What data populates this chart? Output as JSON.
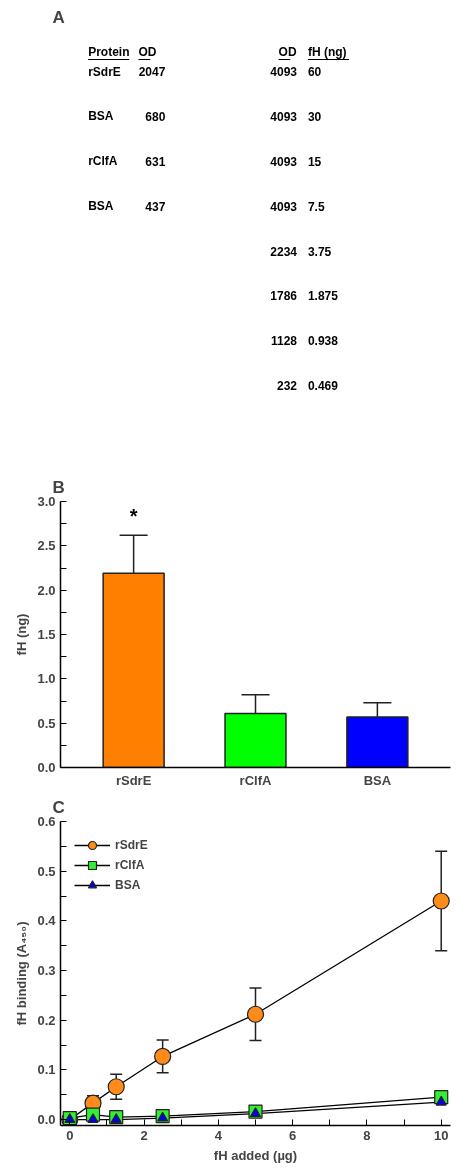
{
  "chart_data": [
    {
      "type": "other",
      "title": "A",
      "annotations": [
        "Protein",
        "OD",
        "OD",
        "fH (ng)",
        "rSdrE",
        "2047",
        "BSA",
        "680",
        "rClfA",
        "631",
        "BSA",
        "437",
        "4093",
        "60",
        "4093",
        "30",
        "4093",
        "15",
        "4093",
        "7.5",
        "2234",
        "3.75",
        "1786",
        "1.875",
        "1128",
        "0.938",
        "232",
        "0.469"
      ]
    },
    {
      "type": "bar",
      "title": "B",
      "ylabel": "fH (ng)",
      "categories": [
        "rSdrE",
        "rClfA",
        "BSA"
      ],
      "values": [
        2.19,
        0.61,
        0.57
      ],
      "colors": [
        "#ff8000",
        "#00ff00",
        "#0000ff"
      ],
      "errors": [
        [
          2.19,
          2.62
        ],
        [
          0.61,
          0.82
        ],
        [
          0.57,
          0.73
        ]
      ],
      "ylim": [
        0,
        3
      ],
      "yticks": [
        {
          "value": 0,
          "label": "0.0"
        },
        {
          "value": 0.25,
          "label": null
        },
        {
          "value": 0.5,
          "label": "0.5"
        },
        {
          "value": 0.75,
          "label": null
        },
        {
          "value": 1,
          "label": "1.0"
        },
        {
          "value": 1.25,
          "label": null
        },
        {
          "value": 1.5,
          "label": "1.5"
        },
        {
          "value": 1.75,
          "label": null
        },
        {
          "value": 2,
          "label": "2.0"
        },
        {
          "value": 2.25,
          "label": null
        },
        {
          "value": 2.5,
          "label": "2.5"
        },
        {
          "value": 2.75,
          "label": null
        },
        {
          "value": 3,
          "label": "3.0"
        }
      ],
      "annotations": [
        "*"
      ]
    },
    {
      "type": "line",
      "title": "C",
      "xlabel": "fH added (µg)",
      "ylabel": "fH binding (A₄₅₀)",
      "legend": "top left",
      "x": [
        0,
        0.625,
        1.25,
        2.5,
        5,
        10
      ],
      "series": [
        {
          "name": "rSdrE",
          "color": "#ff8c1a",
          "marker": "circle",
          "values": [
            0,
            0.033,
            0.066,
            0.127,
            0.212,
            0.44
          ],
          "errors": [
            null,
            0.015,
            0.025,
            0.033,
            0.053,
            0.1
          ]
        },
        {
          "name": "rClfA",
          "color": "#33ee33",
          "marker": "square",
          "values": [
            0.003,
            0.01,
            0.005,
            0.007,
            0.016,
            0.045
          ]
        },
        {
          "name": "BSA",
          "color": "#0000ee",
          "marker": "triangle",
          "values": [
            0,
            0,
            0,
            0.003,
            0.012,
            0.035
          ]
        }
      ],
      "xlim": [
        -0.25,
        10.25
      ],
      "ylim": [
        -0.012,
        0.6
      ],
      "xticks": [
        0,
        {
          "value": 1,
          "label": null
        },
        2,
        {
          "value": 3,
          "label": null
        },
        4,
        {
          "value": 5,
          "label": null
        },
        6,
        {
          "value": 7,
          "label": null
        },
        8,
        {
          "value": 9,
          "label": null
        },
        10
      ],
      "yticks": [
        {
          "value": 0,
          "label": "0.0"
        },
        {
          "value": 0.05,
          "label": null
        },
        {
          "value": 0.1,
          "label": "0.1"
        },
        {
          "value": 0.15,
          "label": null
        },
        {
          "value": 0.2,
          "label": "0.2"
        },
        {
          "value": 0.25,
          "label": null
        },
        {
          "value": 0.3,
          "label": "0.3"
        },
        {
          "value": 0.35,
          "label": null
        },
        {
          "value": 0.4,
          "label": "0.4"
        },
        {
          "value": 0.45,
          "label": null
        },
        {
          "value": 0.5,
          "label": "0.5"
        },
        {
          "value": 0.55,
          "label": null
        },
        {
          "value": 0.6,
          "label": "0.6"
        }
      ]
    }
  ]
}
